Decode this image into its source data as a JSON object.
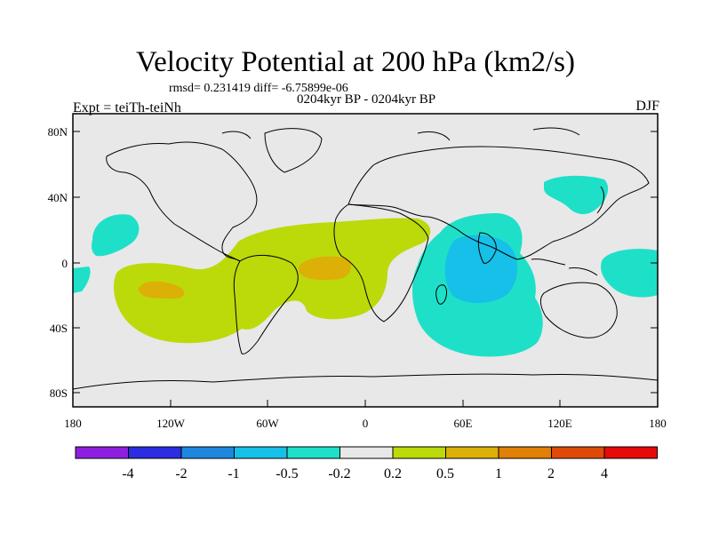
{
  "title": "Velocity Potential at 200 hPa (km2/s)",
  "stats": "rmsd= 0.231419  diff= -6.75899e-06",
  "subtitle": "0204kyr BP - 0204kyr BP",
  "experiment": "Expt = teiTh-teiNh",
  "season": "DJF",
  "y_ticks": [
    "80N",
    "40N",
    "0",
    "40S",
    "80S"
  ],
  "x_ticks": [
    "180",
    "120W",
    "60W",
    "0",
    "60E",
    "120E",
    "180"
  ],
  "colorbar": {
    "labels": [
      "-4",
      "-2",
      "-1",
      "-0.5",
      "-0.2",
      "0.2",
      "0.5",
      "1",
      "2",
      "4"
    ],
    "colors": [
      "#8f1fe0",
      "#2c2ce0",
      "#1e88e0",
      "#16c0e8",
      "#1ee0c8",
      "#e8e8e8",
      "#bcd90a",
      "#dcb006",
      "#e08006",
      "#e04a08",
      "#e80a0a"
    ]
  },
  "palette": {
    "land_bg": "#e8e8e8",
    "coast": "#000000"
  }
}
